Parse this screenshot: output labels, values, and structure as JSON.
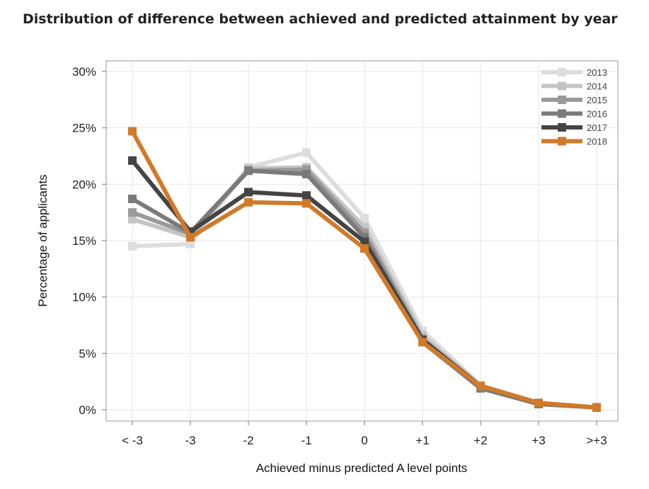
{
  "title": "Distribution of difference between achieved and predicted attainment by year",
  "chart_data": {
    "type": "line",
    "title": "Distribution of difference between achieved and predicted attainment by year",
    "xlabel": "Achieved minus predicted A level points",
    "ylabel": "Percentage of applicants",
    "categories": [
      "< -3",
      "-3",
      "-2",
      "-1",
      "0",
      "+1",
      "+2",
      "+3",
      ">+3"
    ],
    "ylim": [
      0,
      30
    ],
    "yticks": [
      0,
      5,
      10,
      15,
      20,
      25,
      30
    ],
    "ytick_labels": [
      "0%",
      "5%",
      "10%",
      "15%",
      "20%",
      "25%",
      "30%"
    ],
    "grid": true,
    "legend_position": "top-right",
    "series": [
      {
        "name": "2013",
        "color": "#dddddd",
        "values": [
          14.5,
          14.7,
          21.5,
          22.8,
          17.0,
          7.0,
          2.2,
          0.6,
          0.2
        ]
      },
      {
        "name": "2014",
        "color": "#c4c4c4",
        "values": [
          16.9,
          15.3,
          21.4,
          21.5,
          16.2,
          6.6,
          2.1,
          0.6,
          0.2
        ]
      },
      {
        "name": "2015",
        "color": "#9a9a9a",
        "values": [
          17.5,
          15.6,
          21.2,
          21.3,
          15.7,
          6.3,
          2.0,
          0.6,
          0.2
        ]
      },
      {
        "name": "2016",
        "color": "#7a7a7a",
        "values": [
          18.7,
          15.7,
          21.2,
          20.9,
          15.3,
          6.0,
          1.9,
          0.5,
          0.2
        ]
      },
      {
        "name": "2017",
        "color": "#444444",
        "values": [
          22.1,
          15.8,
          19.3,
          19.0,
          14.9,
          6.2,
          2.1,
          0.6,
          0.2
        ]
      },
      {
        "name": "2018",
        "color": "#d07a2a",
        "values": [
          24.7,
          15.3,
          18.4,
          18.3,
          14.3,
          6.0,
          2.1,
          0.6,
          0.2
        ]
      }
    ]
  }
}
